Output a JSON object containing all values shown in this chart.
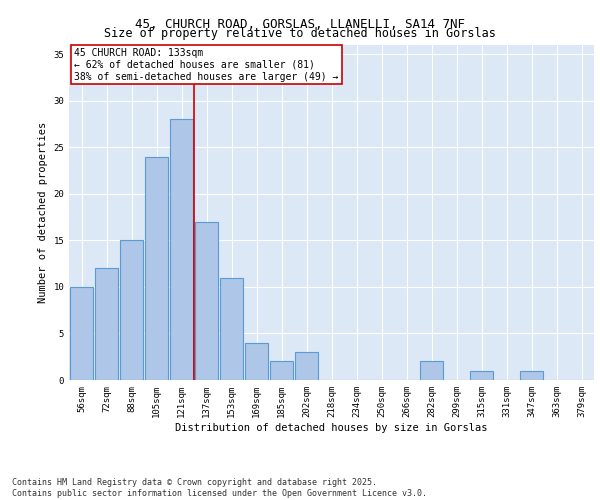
{
  "title1": "45, CHURCH ROAD, GORSLAS, LLANELLI, SA14 7NF",
  "title2": "Size of property relative to detached houses in Gorslas",
  "xlabel": "Distribution of detached houses by size in Gorslas",
  "ylabel": "Number of detached properties",
  "bar_labels": [
    "56sqm",
    "72sqm",
    "88sqm",
    "105sqm",
    "121sqm",
    "137sqm",
    "153sqm",
    "169sqm",
    "185sqm",
    "202sqm",
    "218sqm",
    "234sqm",
    "250sqm",
    "266sqm",
    "282sqm",
    "299sqm",
    "315sqm",
    "331sqm",
    "347sqm",
    "363sqm",
    "379sqm"
  ],
  "bar_values": [
    10,
    12,
    15,
    24,
    28,
    17,
    11,
    4,
    2,
    3,
    0,
    0,
    0,
    0,
    2,
    0,
    1,
    0,
    1,
    0,
    0
  ],
  "bar_color": "#aec6e8",
  "bar_edge_color": "#5b9bd5",
  "bar_edge_width": 0.8,
  "red_line_x": 4.5,
  "annotation_title": "45 CHURCH ROAD: 133sqm",
  "annotation_line1": "← 62% of detached houses are smaller (81)",
  "annotation_line2": "38% of semi-detached houses are larger (49) →",
  "annotation_box_color": "#ffffff",
  "annotation_box_edge_color": "#cc0000",
  "ylim": [
    0,
    36
  ],
  "yticks": [
    0,
    5,
    10,
    15,
    20,
    25,
    30,
    35
  ],
  "background_color": "#dce8f5",
  "grid_color": "#ffffff",
  "footnote": "Contains HM Land Registry data © Crown copyright and database right 2025.\nContains public sector information licensed under the Open Government Licence v3.0.",
  "title_fontsize": 9,
  "subtitle_fontsize": 8.5,
  "axis_label_fontsize": 7.5,
  "tick_fontsize": 6.5,
  "annotation_fontsize": 7,
  "footnote_fontsize": 6
}
